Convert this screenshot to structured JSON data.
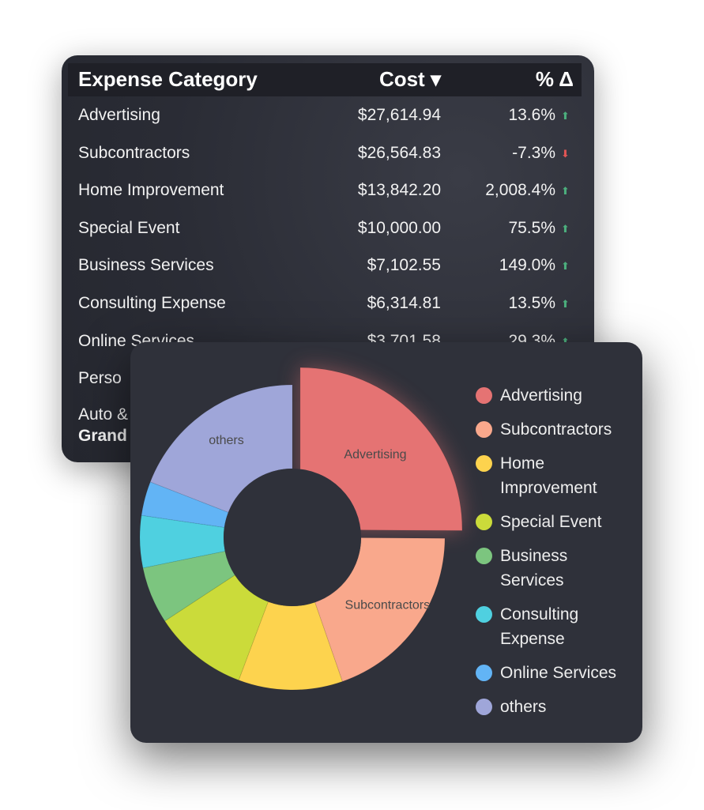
{
  "table": {
    "header": [
      "Expense Category",
      "Cost ▾",
      "% Δ"
    ],
    "rows": [
      [
        "Advertising",
        "$27,614.94",
        "13.6%"
      ],
      [
        "Subcontractors",
        "$26,564.83",
        "-7.3%"
      ],
      [
        "Home Improvement",
        "$13,842.20",
        "2,008.4%"
      ],
      [
        "Special Event",
        "$10,000.00",
        "75.5%"
      ],
      [
        "Business Services",
        "$7,102.55",
        "149.0%"
      ],
      [
        "Consulting Expense",
        "$6,314.81",
        "13.5%"
      ],
      [
        "Online Services",
        "$3,701.58",
        "29.3%"
      ],
      [
        "Perso"
      ],
      [
        "Auto &"
      ],
      [
        "Grand"
      ]
    ],
    "trend": [
      "up",
      "down",
      "up",
      "up",
      "up",
      "up",
      "up"
    ]
  },
  "chart_data": {
    "type": "donut",
    "categories": [
      "Advertising",
      "Subcontractors",
      "Home Improvement",
      "Special Event",
      "Business Services",
      "Consulting Expense",
      "Online Services",
      "others"
    ],
    "values": [
      25,
      19.5,
      11,
      10,
      6,
      5.5,
      3.6,
      19
    ],
    "colors": [
      "#e57373",
      "#f9a88c",
      "#fdd34e",
      "#cbdb3a",
      "#7cc57f",
      "#4fd0e0",
      "#62b4f5",
      "#9fa6d9"
    ],
    "slice_labels": [
      "Advertising",
      "Subcontractors",
      null,
      null,
      null,
      null,
      null,
      "others"
    ]
  }
}
